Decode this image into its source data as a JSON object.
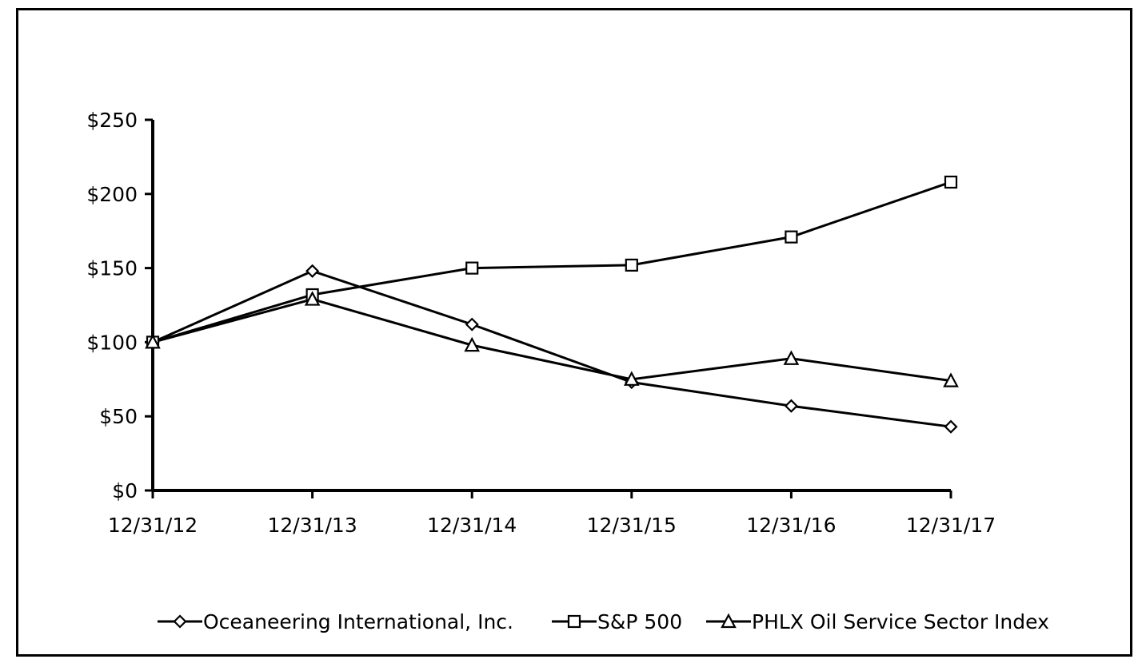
{
  "chart_data": {
    "type": "line",
    "title": "",
    "xlabel": "",
    "ylabel": "",
    "categories": [
      "12/31/12",
      "12/31/13",
      "12/31/14",
      "12/31/15",
      "12/31/16",
      "12/31/17"
    ],
    "ylim": [
      0,
      250
    ],
    "yticks": [
      0,
      50,
      100,
      150,
      200,
      250
    ],
    "ytick_labels": [
      "$0",
      "$50",
      "$100",
      "$150",
      "$200",
      "$250"
    ],
    "grid": false,
    "legend_position": "bottom",
    "series": [
      {
        "name": "Oceaneering International, Inc.",
        "marker": "diamond",
        "values": [
          100,
          148,
          112,
          73,
          57,
          43
        ]
      },
      {
        "name": "S&P 500",
        "marker": "square",
        "values": [
          100,
          132,
          150,
          152,
          171,
          208
        ]
      },
      {
        "name": "PHLX Oil Service Sector Index",
        "marker": "triangle",
        "values": [
          100,
          129,
          98,
          75,
          89,
          74
        ]
      }
    ],
    "colors": {
      "line": "#000000",
      "marker_fill": "#ffffff"
    }
  }
}
